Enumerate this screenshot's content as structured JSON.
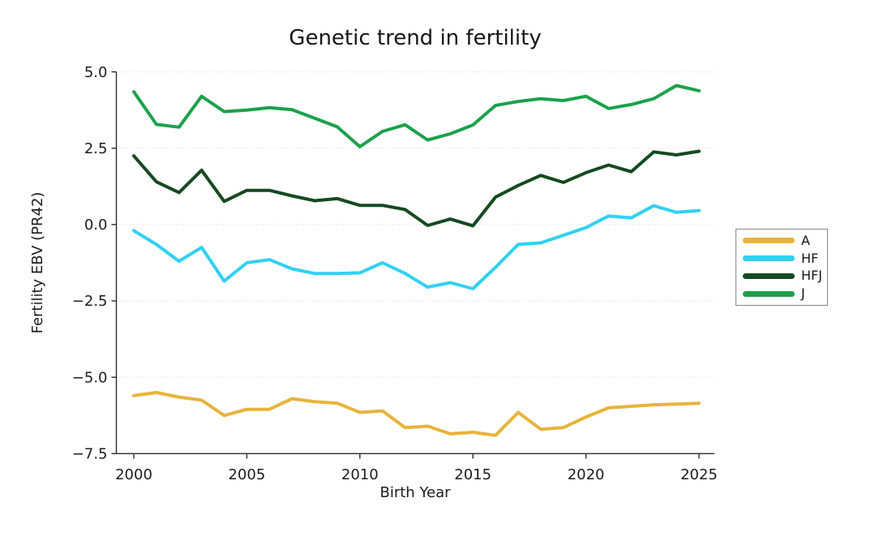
{
  "figure": {
    "background": "#ffffff"
  },
  "chart_data": {
    "type": "line",
    "title": "Genetic trend in fertility",
    "xlabel": "Birth Year",
    "ylabel": "Fertility EBV (PR42)",
    "ylim": [
      -7.5,
      5.0
    ],
    "xlim": [
      2000,
      2025
    ],
    "grid": "horizontal-dotted",
    "legend_position": "right-outside",
    "x": [
      2000,
      2001,
      2002,
      2003,
      2004,
      2005,
      2006,
      2007,
      2008,
      2009,
      2010,
      2011,
      2012,
      2013,
      2014,
      2015,
      2016,
      2017,
      2018,
      2019,
      2020,
      2021,
      2022,
      2023,
      2024,
      2025
    ],
    "xtick_values": [
      2000,
      2005,
      2010,
      2015,
      2020,
      2025
    ],
    "xtick_labels": [
      "2000",
      "2005",
      "2010",
      "2015",
      "2020",
      "2025"
    ],
    "ytick_values": [
      5.0,
      2.5,
      0.0,
      -2.5,
      -5.0,
      -7.5
    ],
    "ytick_labels": [
      "5.0",
      "2.5",
      "0.0",
      "−2.5",
      "−5.0",
      "−7.5"
    ],
    "series": [
      {
        "name": "A",
        "color": "#E8B33B",
        "values": [
          -5.6,
          -5.5,
          -5.65,
          -5.75,
          -6.25,
          -6.05,
          -6.05,
          -5.7,
          -5.8,
          -5.85,
          -6.15,
          -6.1,
          -6.65,
          -6.6,
          -6.85,
          -6.8,
          -6.9,
          -6.15,
          -6.7,
          -6.65,
          -6.3,
          -6.0,
          -5.95,
          -5.9,
          -5.88,
          -5.85
        ]
      },
      {
        "name": "HF",
        "color": "#30D1F2",
        "values": [
          -0.2,
          -0.65,
          -1.2,
          -0.75,
          -1.85,
          -1.25,
          -1.15,
          -1.45,
          -1.6,
          -1.6,
          -1.58,
          -1.25,
          -1.6,
          -2.05,
          -1.9,
          -2.1,
          -1.4,
          -0.65,
          -0.6,
          -0.35,
          -0.1,
          0.28,
          0.22,
          0.62,
          0.4,
          0.46
        ]
      },
      {
        "name": "HFJ",
        "color": "#154A20",
        "values": [
          2.25,
          1.4,
          1.05,
          1.78,
          0.76,
          1.12,
          1.12,
          0.94,
          0.78,
          0.85,
          0.63,
          0.63,
          0.49,
          -0.03,
          0.18,
          -0.04,
          0.9,
          1.28,
          1.61,
          1.38,
          1.7,
          1.95,
          1.73,
          2.38,
          2.28,
          2.4
        ]
      },
      {
        "name": "J",
        "color": "#1BA14B",
        "values": [
          4.35,
          3.28,
          3.19,
          4.2,
          3.7,
          3.75,
          3.83,
          3.76,
          3.48,
          3.2,
          2.55,
          3.05,
          3.27,
          2.77,
          2.97,
          3.26,
          3.9,
          4.03,
          4.12,
          4.06,
          4.2,
          3.8,
          3.93,
          4.12,
          4.55,
          4.38
        ]
      }
    ]
  }
}
